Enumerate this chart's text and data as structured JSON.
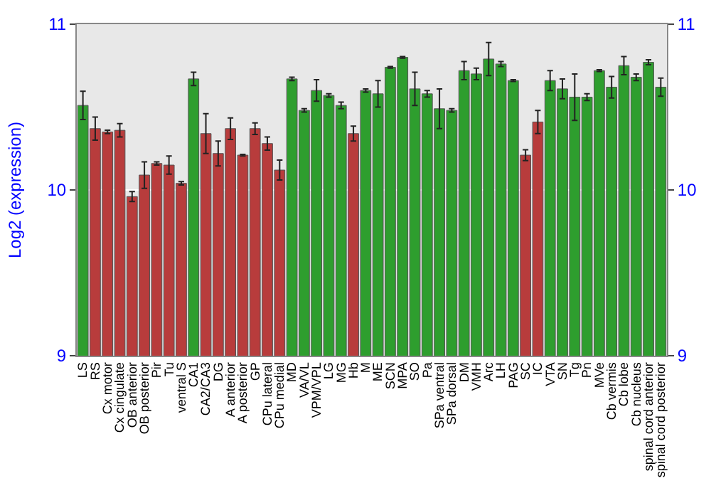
{
  "chart_data": {
    "type": "bar",
    "ylabel": "Log2 (expression)",
    "categories": [
      "LS",
      "RS",
      "Cx motor",
      "Cx cingulate",
      "OB anterior",
      "OB posterior",
      "Pir",
      "Tu",
      "ventral S",
      "CA1",
      "CA2/CA3",
      "DG",
      "A anterior",
      "A posterior",
      "GP",
      "CPu lateral",
      "CPu medial",
      "MD",
      "VA/VL",
      "VPM/VPL",
      "LG",
      "MG",
      "Hb",
      "M",
      "ME",
      "SCN",
      "MPA",
      "SO",
      "Pa",
      "SPa ventral",
      "SPa dorsal",
      "DM",
      "VMH",
      "Arc",
      "LH",
      "PAG",
      "SC",
      "IC",
      "VTA",
      "SN",
      "Tg",
      "Pn",
      "MVe",
      "Cb vermis",
      "Cb lobe",
      "Cb nucleus",
      "spinal cord anterior",
      "spinal cord posterior"
    ],
    "values": [
      10.51,
      10.37,
      10.35,
      10.36,
      9.96,
      10.09,
      10.16,
      10.15,
      10.04,
      10.67,
      10.34,
      10.22,
      10.37,
      10.21,
      10.37,
      10.28,
      10.12,
      10.67,
      10.48,
      10.6,
      10.57,
      10.51,
      10.34,
      10.6,
      10.58,
      10.74,
      10.8,
      10.61,
      10.58,
      10.49,
      10.48,
      10.72,
      10.7,
      10.79,
      10.76,
      10.66,
      10.21,
      10.41,
      10.66,
      10.61,
      10.56,
      10.56,
      10.72,
      10.62,
      10.75,
      10.68,
      10.77,
      10.62
    ],
    "errors": [
      0.085,
      0.07,
      0.01,
      0.04,
      0.03,
      0.08,
      0.01,
      0.055,
      0.01,
      0.04,
      0.12,
      0.075,
      0.065,
      0.005,
      0.035,
      0.04,
      0.06,
      0.01,
      0.01,
      0.065,
      0.01,
      0.02,
      0.045,
      0.01,
      0.08,
      0.005,
      0.005,
      0.1,
      0.02,
      0.12,
      0.01,
      0.055,
      0.035,
      0.1,
      0.015,
      0.005,
      0.033,
      0.07,
      0.06,
      0.06,
      0.14,
      0.02,
      0.005,
      0.065,
      0.055,
      0.02,
      0.015,
      0.055
    ],
    "colors": [
      "#2e9e2e",
      "#b83c3c",
      "#b83c3c",
      "#b83c3c",
      "#b83c3c",
      "#b83c3c",
      "#b83c3c",
      "#b83c3c",
      "#b83c3c",
      "#2e9e2e",
      "#b83c3c",
      "#b83c3c",
      "#b83c3c",
      "#b83c3c",
      "#b83c3c",
      "#b83c3c",
      "#b83c3c",
      "#2e9e2e",
      "#2e9e2e",
      "#2e9e2e",
      "#2e9e2e",
      "#2e9e2e",
      "#b83c3c",
      "#2e9e2e",
      "#2e9e2e",
      "#2e9e2e",
      "#2e9e2e",
      "#2e9e2e",
      "#2e9e2e",
      "#2e9e2e",
      "#2e9e2e",
      "#2e9e2e",
      "#2e9e2e",
      "#2e9e2e",
      "#2e9e2e",
      "#2e9e2e",
      "#b83c3c",
      "#b83c3c",
      "#2e9e2e",
      "#2e9e2e",
      "#2e9e2e",
      "#2e9e2e",
      "#2e9e2e",
      "#2e9e2e",
      "#2e9e2e",
      "#2e9e2e",
      "#2e9e2e",
      "#2e9e2e"
    ],
    "ylim": [
      9,
      11
    ],
    "yticks": [
      9,
      10,
      11
    ],
    "y2lim": [
      9,
      11
    ],
    "y2ticks": [
      9,
      10,
      11
    ],
    "grid": "y"
  }
}
